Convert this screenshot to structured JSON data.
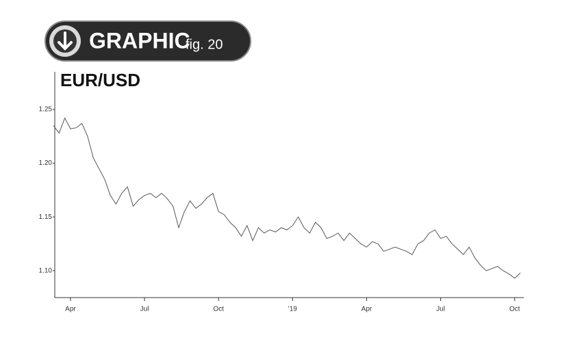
{
  "badge": {
    "label": "GRAPHIC",
    "figure": "fig. 20"
  },
  "chart_data": {
    "type": "line",
    "title": "EUR/USD",
    "categories": [
      null,
      null,
      null,
      "Apr",
      null,
      null,
      null,
      null,
      null,
      null,
      null,
      null,
      null,
      null,
      null,
      null,
      "Jul",
      null,
      null,
      null,
      null,
      null,
      null,
      null,
      null,
      null,
      null,
      null,
      null,
      "Oct",
      null,
      null,
      null,
      null,
      null,
      null,
      null,
      null,
      null,
      null,
      null,
      null,
      "'19",
      null,
      null,
      null,
      null,
      null,
      null,
      null,
      null,
      null,
      null,
      null,
      null,
      "Apr",
      null,
      null,
      null,
      null,
      null,
      null,
      null,
      null,
      null,
      null,
      null,
      null,
      "Jul",
      null,
      null,
      null,
      null,
      null,
      null,
      null,
      null,
      null,
      null,
      null,
      null,
      "Oct",
      null
    ],
    "values": [
      1.235,
      1.228,
      1.242,
      1.232,
      1.233,
      1.237,
      1.225,
      1.205,
      1.195,
      1.185,
      1.17,
      1.162,
      1.172,
      1.178,
      1.16,
      1.166,
      1.17,
      1.172,
      1.168,
      1.172,
      1.167,
      1.16,
      1.14,
      1.155,
      1.165,
      1.158,
      1.162,
      1.168,
      1.172,
      1.155,
      1.152,
      1.145,
      1.14,
      1.132,
      1.142,
      1.128,
      1.14,
      1.135,
      1.138,
      1.136,
      1.14,
      1.138,
      1.142,
      1.15,
      1.14,
      1.135,
      1.145,
      1.14,
      1.13,
      1.132,
      1.135,
      1.128,
      1.135,
      1.13,
      1.125,
      1.122,
      1.127,
      1.125,
      1.118,
      1.12,
      1.122,
      1.12,
      1.118,
      1.115,
      1.125,
      1.128,
      1.135,
      1.138,
      1.13,
      1.132,
      1.125,
      1.12,
      1.115,
      1.122,
      1.112,
      1.105,
      1.1,
      1.102,
      1.104,
      1.1,
      1.097,
      1.093,
      1.098
    ],
    "color": "#555555",
    "ylim": [
      1.075,
      1.285
    ],
    "yticks": [
      {
        "value": 1.1,
        "label": "1.10"
      },
      {
        "value": 1.15,
        "label": "1.15"
      },
      {
        "value": 1.2,
        "label": "1.20"
      },
      {
        "value": 1.25,
        "label": "1.25"
      }
    ]
  }
}
